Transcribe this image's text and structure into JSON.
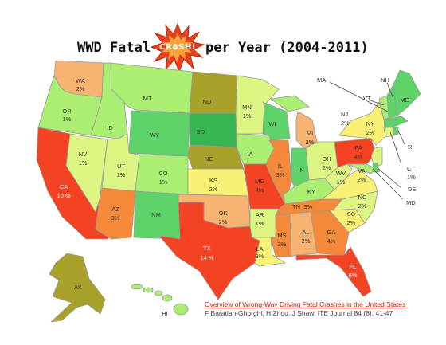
{
  "title": {
    "before": "WWD Fatal",
    "burst_word": "CRASH!",
    "after": "per Year (2004-2011)"
  },
  "colors": {
    "red": "#f44322",
    "orange": "#f5893a",
    "light_orange": "#f8b272",
    "yellow": "#f9f176",
    "pale_green": "#ddf582",
    "light_green": "#aaee72",
    "green": "#5ed36a",
    "dark_green": "#37b550",
    "olive": "#a8a12a"
  },
  "states": {
    "WA": {
      "abbr": "WA",
      "pct": "2%"
    },
    "OR": {
      "abbr": "OR",
      "pct": "1%"
    },
    "CA": {
      "abbr": "CA",
      "pct": "10 %"
    },
    "NV": {
      "abbr": "NV",
      "pct": "1%"
    },
    "ID": {
      "abbr": "ID"
    },
    "MT": {
      "abbr": "MT"
    },
    "WY": {
      "abbr": "WY"
    },
    "UT": {
      "abbr": "UT",
      "pct": "1%"
    },
    "AZ": {
      "abbr": "AZ",
      "pct": "3%"
    },
    "CO": {
      "abbr": "CO",
      "pct": "1%"
    },
    "NM": {
      "abbr": "NM"
    },
    "ND": {
      "abbr": "ND"
    },
    "SD": {
      "abbr": "SD"
    },
    "NE": {
      "abbr": "NE"
    },
    "KS": {
      "abbr": "KS",
      "pct": "2%"
    },
    "OK": {
      "abbr": "OK",
      "pct": "2%"
    },
    "TX": {
      "abbr": "TX",
      "pct": "14 %"
    },
    "MN": {
      "abbr": "MN",
      "pct": "1%"
    },
    "IA": {
      "abbr": "IA"
    },
    "MO": {
      "abbr": "MO",
      "pct": "4%"
    },
    "AR": {
      "abbr": "AR",
      "pct": "1%"
    },
    "LA": {
      "abbr": "LA",
      "pct": "2%"
    },
    "WI": {
      "abbr": "WI"
    },
    "IL": {
      "abbr": "IL",
      "pct": "3%"
    },
    "MI": {
      "abbr": "MI",
      "pct": "2%"
    },
    "IN": {
      "abbr": "IN"
    },
    "OH": {
      "abbr": "OH",
      "pct": "2%"
    },
    "KY": {
      "abbr": "KY"
    },
    "TN": {
      "abbr": "TN",
      "pct": "3%"
    },
    "MS": {
      "abbr": "MS",
      "pct": "3%"
    },
    "AL": {
      "abbr": "AL",
      "pct": "2%"
    },
    "GA": {
      "abbr": "GA",
      "pct": "4%"
    },
    "FL": {
      "abbr": "FL",
      "pct": "6%"
    },
    "SC": {
      "abbr": "SC",
      "pct": "2%"
    },
    "NC": {
      "abbr": "NC",
      "pct": "2%"
    },
    "VA": {
      "abbr": "VA",
      "pct": "2%"
    },
    "WV": {
      "abbr": "WV",
      "pct": "1%"
    },
    "PA": {
      "abbr": "PA",
      "pct": "4%"
    },
    "NY": {
      "abbr": "NY",
      "pct": "2%"
    },
    "ME": {
      "abbr": "ME"
    },
    "AK": {
      "abbr": "AK"
    },
    "HI": {
      "abbr": "HI"
    }
  },
  "northeast_labels": {
    "MA": "MA",
    "NH": "NH",
    "VT": "VT",
    "NJ": "NJ",
    "NJ_pct": "2%",
    "RI": "RI",
    "CT": "CT",
    "CT_pct": "1%",
    "DE": "DE",
    "MD": "MD"
  },
  "citation": {
    "title": "Overview of Wrong-Way Driving Fatal Crashes in the United States",
    "reference": "F Baratian-Ghorghi, H Zhou, J Shaw. ITE Journal 84 (8), 41-47"
  }
}
